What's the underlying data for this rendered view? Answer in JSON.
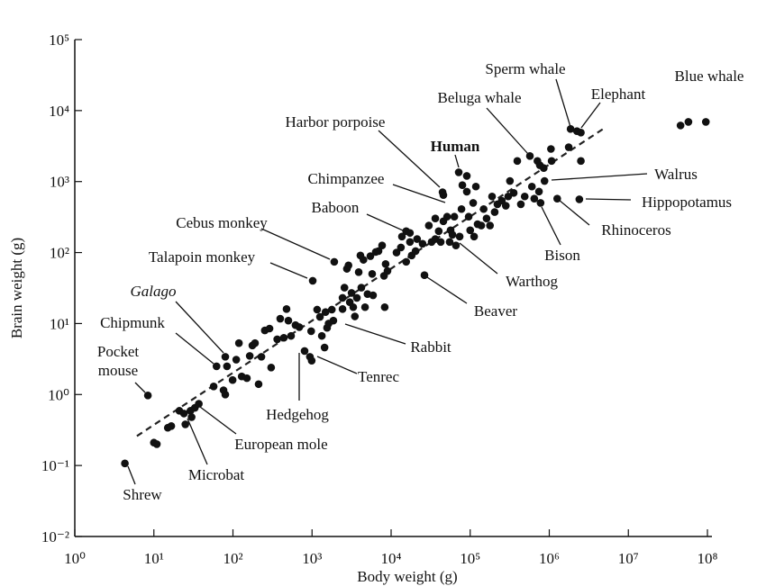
{
  "chart_data": {
    "type": "scatter",
    "x_label": "Body weight (g)",
    "y_label": "Brain weight (g)",
    "x_scale": "log",
    "y_scale": "log",
    "xlim": [
      1,
      100000000
    ],
    "ylim": [
      0.01,
      100000
    ],
    "xticks": [
      {
        "value": 1,
        "label": "10⁰"
      },
      {
        "value": 10,
        "label": "10¹"
      },
      {
        "value": 100,
        "label": "10²"
      },
      {
        "value": 1000,
        "label": "10³"
      },
      {
        "value": 10000,
        "label": "10⁴"
      },
      {
        "value": 100000,
        "label": "10⁵"
      },
      {
        "value": 1000000,
        "label": "10⁶"
      },
      {
        "value": 10000000,
        "label": "10⁷"
      },
      {
        "value": 100000000,
        "label": "10⁸"
      }
    ],
    "yticks": [
      {
        "value": 0.01,
        "label": "10⁻²"
      },
      {
        "value": 0.1,
        "label": "10⁻¹"
      },
      {
        "value": 1,
        "label": "10⁰"
      },
      {
        "value": 10,
        "label": "10¹"
      },
      {
        "value": 100,
        "label": "10²"
      },
      {
        "value": 1000,
        "label": "10³"
      },
      {
        "value": 10000,
        "label": "10⁴"
      },
      {
        "value": 100000,
        "label": "10⁵"
      }
    ],
    "grid": false,
    "color": "#111111",
    "x": [
      4.3,
      8.4,
      10,
      10.9,
      15,
      16.6,
      21,
      24,
      25,
      29,
      30,
      33,
      37,
      57,
      62,
      80,
      76,
      80,
      84,
      99,
      110,
      119,
      129,
      150,
      163,
      176,
      190,
      211,
      229,
      253,
      290,
      304,
      363,
      396,
      440,
      476,
      502,
      543,
      618,
      690,
      805,
      1020,
      975,
      1160,
      1260,
      1330,
      1480,
      1440,
      1550,
      1620,
      1910,
      1780,
      1860,
      940,
      990,
      2430,
      2570,
      2430,
      2760,
      2890,
      3160,
      3000,
      3320,
      3480,
      3690,
      3890,
      4090,
      4470,
      4200,
      4680,
      5030,
      5470,
      5910,
      5760,
      6930,
      6400,
      7690,
      8130,
      8520,
      9000,
      8300,
      11700,
      13300,
      13700,
      15500,
      17300,
      15500,
      17300,
      18200,
      20400,
      21300,
      25000,
      26400,
      30000,
      32500,
      36200,
      36200,
      40000,
      42400,
      44700,
      45800,
      45800,
      51000,
      55000,
      56500,
      59700,
      63000,
      66000,
      71600,
      73600,
      77600,
      79600,
      90600,
      90600,
      95600,
      100000,
      109000,
      112000,
      124000,
      118000,
      138000,
      148000,
      161000,
      178000,
      189000,
      204000,
      221000,
      251000,
      282000,
      318000,
      302000,
      355000,
      394000,
      437000,
      489000,
      569000,
      603000,
      646000,
      708000,
      759000,
      741000,
      776000,
      851000,
      871000,
      1050000,
      1070000,
      1260000,
      1760000,
      1860000,
      2240000,
      2510000,
      2510000,
      2400000,
      45700000,
      57500000,
      95500000
    ],
    "y": [
      0.107,
      0.97,
      0.21,
      0.2,
      0.34,
      0.36,
      0.59,
      0.54,
      0.38,
      0.59,
      0.48,
      0.65,
      0.74,
      1.3,
      2.5,
      3.4,
      1.15,
      1.0,
      2.5,
      1.6,
      3.1,
      5.3,
      1.8,
      1.7,
      3.5,
      4.9,
      5.3,
      1.4,
      3.4,
      8.0,
      8.5,
      2.4,
      6.0,
      11.7,
      6.3,
      16,
      11,
      6.7,
      9.5,
      8.9,
      4.1,
      40,
      7.8,
      15.7,
      12.4,
      6.7,
      14.5,
      4.6,
      8.7,
      10,
      74,
      15.7,
      11,
      3.4,
      3.0,
      23,
      32,
      16,
      59,
      66,
      27,
      20,
      17,
      12.6,
      23,
      53,
      91,
      79,
      32,
      17,
      26,
      89,
      25,
      50,
      105,
      102,
      126,
      47,
      69,
      55,
      17,
      100,
      118,
      168,
      200,
      189,
      74,
      141,
      91,
      105,
      155,
      133,
      48,
      240,
      141,
      155,
      302,
      200,
      141,
      708,
      646,
      276,
      320,
      141,
      206,
      178,
      320,
      126,
      1350,
      168,
      410,
      890,
      1200,
      720,
      320,
      206,
      500,
      168,
      251,
      851,
      240,
      410,
      302,
      240,
      617,
      372,
      479,
      537,
      457,
      1020,
      617,
      692,
      1950,
      479,
      617,
      2290,
      851,
      575,
      1950,
      1700,
      724,
      500,
      1550,
      1020,
      2880,
      1950,
      575,
      3050,
      5500,
      5130,
      4900,
      1950,
      562,
      6170,
      6920,
      6920
    ],
    "fit_line": {
      "x": [
        6.1,
        4900000
      ],
      "y": [
        0.26,
        5600
      ],
      "color": "#222222",
      "dashed": true
    },
    "annotations": [
      "Sperm whale",
      "Elephant",
      "Blue whale",
      "Beluga whale",
      "Harbor porpoise",
      "Human",
      "Chimpanzee",
      "Walrus",
      "Hippopotamus",
      "Rhinoceros",
      "Bison",
      "Baboon",
      "Cebus monkey",
      "Talapoin monkey",
      "Warthog",
      "Galago",
      "Beaver",
      "Chipmunk",
      "Rabbit",
      "Pocket mouse",
      "Tenrec",
      "Hedgehog",
      "European mole",
      "Microbat",
      "Shrew"
    ]
  }
}
